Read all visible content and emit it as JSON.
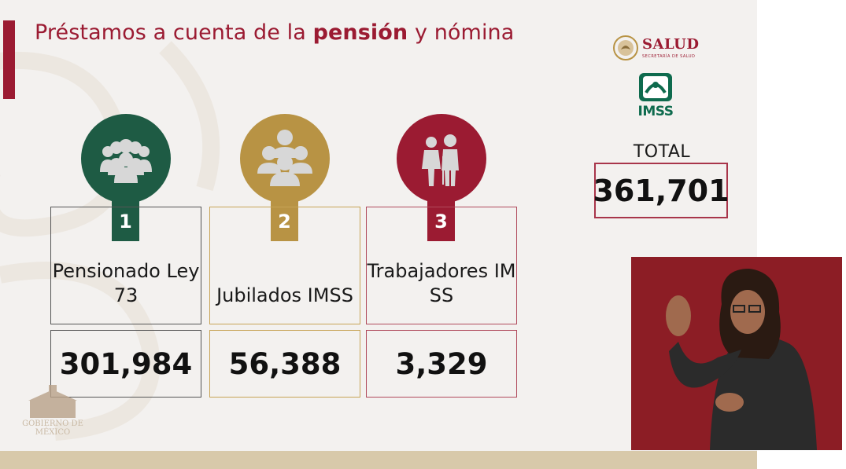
{
  "slide": {
    "title_prefix": "Préstamos a cuenta de la ",
    "title_highlight": "pensión",
    "title_suffix": " y nómina"
  },
  "logos": {
    "salud_name": "SALUD",
    "salud_subtitle": "SECRETARÍA DE SALUD",
    "imss_name": "IMSS",
    "gobierno_line1": "GOBIERNO DE",
    "gobierno_line2": "MÉXICO"
  },
  "total": {
    "label": "TOTAL",
    "value": "361,701"
  },
  "cards": [
    {
      "number": "1",
      "label": "Pensionado Ley 73",
      "value": "301,984",
      "icon": "group-icon",
      "color": "#1e5b44"
    },
    {
      "number": "2",
      "label": "Jubilados IMSS",
      "value": "56,388",
      "icon": "group-icon",
      "color": "#b89344"
    },
    {
      "number": "3",
      "label": "Trabajadores IMSS",
      "value": "3,329",
      "icon": "elderly-couple-icon",
      "color": "#9b1b32"
    }
  ],
  "colors": {
    "brand_red": "#9b1b32",
    "brand_green": "#1e5b44",
    "brand_gold": "#b89344",
    "imss_green": "#0e6b4e",
    "interpreter_background": "#8c1d25"
  }
}
